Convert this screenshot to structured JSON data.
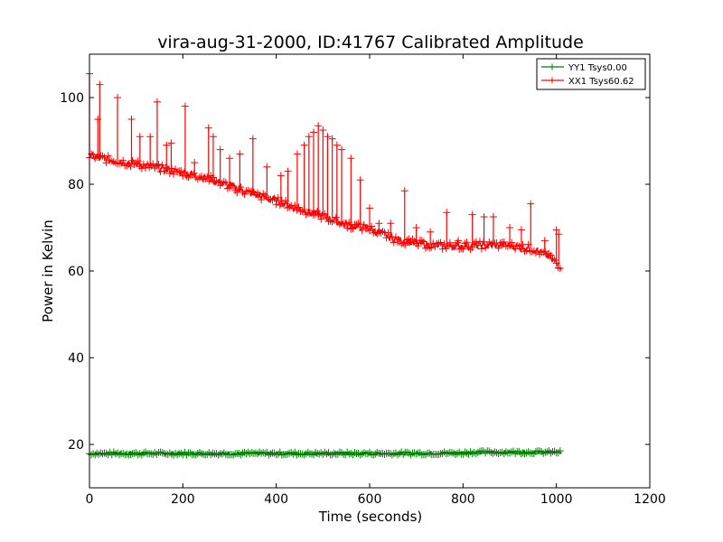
{
  "chart_data": {
    "type": "line",
    "title": "vira-aug-31-2000, ID:41767 Calibrated Amplitude",
    "xlabel": "Time (seconds)",
    "ylabel": "Power in Kelvin",
    "xlim": [
      0,
      1200
    ],
    "ylim": [
      10,
      110
    ],
    "xticks": [
      0,
      200,
      400,
      600,
      800,
      1000,
      1200
    ],
    "yticks": [
      20,
      40,
      60,
      80,
      100
    ],
    "grid": false,
    "legend_position": "top-right",
    "marker": "+",
    "series": [
      {
        "name": "YY1 Tsys0.00",
        "color": "#008000",
        "baseline": [
          [
            0,
            17.9
          ],
          [
            200,
            17.9
          ],
          [
            400,
            17.9
          ],
          [
            600,
            17.9
          ],
          [
            800,
            18.0
          ],
          [
            820,
            18.2
          ],
          [
            1010,
            18.2
          ]
        ]
      },
      {
        "name": "XX1 Tsys60.62",
        "color": "#ff0000",
        "baseline": [
          [
            0,
            86.5
          ],
          [
            50,
            85.5
          ],
          [
            100,
            84.7
          ],
          [
            150,
            83.7
          ],
          [
            200,
            82.6
          ],
          [
            250,
            81.5
          ],
          [
            300,
            79.6
          ],
          [
            350,
            77.7
          ],
          [
            400,
            76.2
          ],
          [
            450,
            74.3
          ],
          [
            500,
            72.6
          ],
          [
            550,
            70.7
          ],
          [
            600,
            69.8
          ],
          [
            650,
            67.5
          ],
          [
            700,
            66.3
          ],
          [
            750,
            65.8
          ],
          [
            800,
            65.8
          ],
          [
            850,
            66.0
          ],
          [
            900,
            65.9
          ],
          [
            950,
            65.1
          ],
          [
            980,
            63.5
          ],
          [
            1010,
            61.0
          ]
        ],
        "spikes": [
          [
            0,
            105.5
          ],
          [
            22,
            103
          ],
          [
            18,
            95
          ],
          [
            60,
            100
          ],
          [
            90,
            95
          ],
          [
            108,
            91
          ],
          [
            130,
            91
          ],
          [
            145,
            99
          ],
          [
            165,
            89
          ],
          [
            175,
            89.5
          ],
          [
            205,
            98
          ],
          [
            225,
            85
          ],
          [
            255,
            93
          ],
          [
            265,
            91
          ],
          [
            280,
            88
          ],
          [
            300,
            86
          ],
          [
            322,
            87
          ],
          [
            350,
            90.5
          ],
          [
            380,
            84
          ],
          [
            410,
            82
          ],
          [
            425,
            83
          ],
          [
            445,
            87
          ],
          [
            460,
            89
          ],
          [
            470,
            91
          ],
          [
            480,
            92
          ],
          [
            490,
            93.5
          ],
          [
            500,
            92.5
          ],
          [
            510,
            91
          ],
          [
            520,
            90.5
          ],
          [
            530,
            89
          ],
          [
            540,
            88
          ],
          [
            560,
            86
          ],
          [
            580,
            81
          ],
          [
            600,
            74.5
          ],
          [
            620,
            71
          ],
          [
            645,
            71
          ],
          [
            675,
            78.5
          ],
          [
            700,
            70
          ],
          [
            730,
            69
          ],
          [
            765,
            73.5
          ],
          [
            790,
            67
          ],
          [
            820,
            73
          ],
          [
            845,
            72.5
          ],
          [
            865,
            72.5
          ],
          [
            900,
            70
          ],
          [
            925,
            69.5
          ],
          [
            945,
            75.5
          ],
          [
            975,
            67
          ],
          [
            1000,
            69.5
          ],
          [
            1005,
            68.5
          ]
        ]
      }
    ]
  }
}
